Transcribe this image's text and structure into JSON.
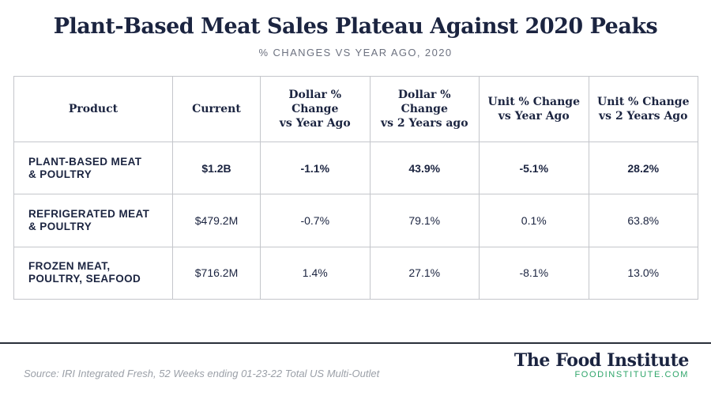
{
  "title": "Plant-Based Meat Sales Plateau Against 2020 Peaks",
  "subtitle": "% CHANGES VS YEAR AGO, 2020",
  "colors": {
    "text": "#1b2440",
    "negative": "#e3622a",
    "positive": "#3daa72",
    "brand_url": "#2fa56a"
  },
  "chart_data": {
    "type": "table",
    "columns": [
      "Product",
      "Current",
      "Dollar % Change vs Year Ago",
      "Dollar % Change vs 2 Years ago",
      "Unit % Change vs Year Ago",
      "Unit % Change vs 2 Years Ago"
    ],
    "header_lines": [
      [
        "Product"
      ],
      [
        "Current"
      ],
      [
        "Dollar % Change",
        "vs Year Ago"
      ],
      [
        "Dollar % Change",
        "vs 2 Years ago"
      ],
      [
        "Unit % Change",
        "vs Year Ago"
      ],
      [
        "Unit % Change",
        "vs 2 Years Ago"
      ]
    ],
    "rows": [
      {
        "product_lines": [
          "PLANT-BASED MEAT",
          "& POULTRY"
        ],
        "current": "$1.2B",
        "dollar_vs_1y": "-1.1%",
        "dollar_vs_2y": "43.9%",
        "unit_vs_1y": "-5.1%",
        "unit_vs_2y": "28.2%",
        "highlighted": true
      },
      {
        "product_lines": [
          "REFRIGERATED MEAT",
          "& POULTRY"
        ],
        "current": "$479.2M",
        "dollar_vs_1y": "-0.7%",
        "dollar_vs_2y": "79.1%",
        "unit_vs_1y": "0.1%",
        "unit_vs_2y": "63.8%",
        "highlighted": false
      },
      {
        "product_lines": [
          "FROZEN MEAT,",
          "POULTRY, SEAFOOD"
        ],
        "current": "$716.2M",
        "dollar_vs_1y": "1.4%",
        "dollar_vs_2y": "27.1%",
        "unit_vs_1y": "-8.1%",
        "unit_vs_2y": "13.0%",
        "highlighted": false
      }
    ]
  },
  "footer": {
    "source": "Source: IRI Integrated Fresh, 52 Weeks ending 01-23-22 Total US Multi-Outlet",
    "brand_name": "The Food Institute",
    "brand_url": "FOODINSTITUTE.COM"
  }
}
